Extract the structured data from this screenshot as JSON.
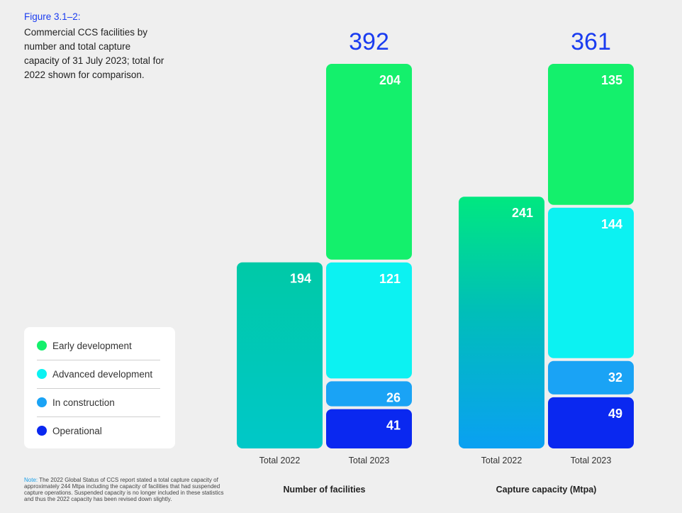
{
  "figure": {
    "label": "Figure 3.1–2:",
    "caption": "Commercial CCS facilities by number and total capture capacity of 31 July 2023; total for 2022 shown for comparison."
  },
  "legend": {
    "items": [
      {
        "label": "Early development",
        "color": "#14f06c"
      },
      {
        "label": "Advanced development",
        "color": "#0cf2f2"
      },
      {
        "label": "In construction",
        "color": "#1aa3f5"
      },
      {
        "label": "Operational",
        "color": "#0a28f0"
      }
    ]
  },
  "note": {
    "label": "Note:",
    "text": "The 2022 Global Status of CCS report stated a total capture capacity of approximately 244 Mtpa including the capacity of facilities that had suspended capture operations. Suspended capacity is no longer included in these statistics and thus the 2022 capacity has been revised down slightly."
  },
  "chart_data": [
    {
      "type": "bar",
      "stacked": true,
      "group_label": "Number of facilities",
      "categories": [
        "Total 2022",
        "Total 2023"
      ],
      "totals": [
        null,
        "392"
      ],
      "total_2022": 194,
      "stack_2023": [
        {
          "name": "Operational",
          "value": 41
        },
        {
          "name": "In construction",
          "value": 26
        },
        {
          "name": "Advanced development",
          "value": 121
        },
        {
          "name": "Early development",
          "value": 204
        }
      ]
    },
    {
      "type": "bar",
      "stacked": true,
      "group_label": "Capture capacity (Mtpa)",
      "categories": [
        "Total 2022",
        "Total 2023"
      ],
      "totals": [
        null,
        "361"
      ],
      "total_2022": 241,
      "stack_2023": [
        {
          "name": "Operational",
          "value": 49
        },
        {
          "name": "In construction",
          "value": 32
        },
        {
          "name": "Advanced development",
          "value": 144
        },
        {
          "name": "Early development",
          "value": 135
        }
      ]
    }
  ]
}
